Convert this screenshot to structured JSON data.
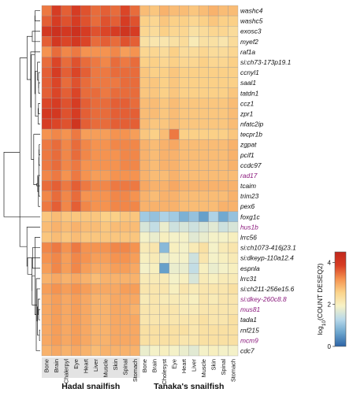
{
  "chart_data": {
    "type": "heatmap",
    "title": "",
    "genes": [
      {
        "label": "washc4",
        "highlight": false
      },
      {
        "label": "washc5",
        "highlight": false
      },
      {
        "label": "exosc3",
        "highlight": false
      },
      {
        "label": "myef2",
        "highlight": false
      },
      {
        "label": "raf1a",
        "highlight": false
      },
      {
        "label": "si:ch73-173p19.1",
        "highlight": false
      },
      {
        "label": "ccnyl1",
        "highlight": false
      },
      {
        "label": "saal1",
        "highlight": false
      },
      {
        "label": "tatdn1",
        "highlight": false
      },
      {
        "label": "ccz1",
        "highlight": false
      },
      {
        "label": "zpr1",
        "highlight": false
      },
      {
        "label": "nfatc2ip",
        "highlight": false
      },
      {
        "label": "tecpr1b",
        "highlight": false
      },
      {
        "label": "zgpat",
        "highlight": false
      },
      {
        "label": "pcif1",
        "highlight": false
      },
      {
        "label": "ccdc97",
        "highlight": false
      },
      {
        "label": "rad17",
        "highlight": true
      },
      {
        "label": "tcaim",
        "highlight": false
      },
      {
        "label": "trim23",
        "highlight": false
      },
      {
        "label": "pex6",
        "highlight": false
      },
      {
        "label": "foxg1c",
        "highlight": false
      },
      {
        "label": "hus1b",
        "highlight": true
      },
      {
        "label": "lrrc56",
        "highlight": false
      },
      {
        "label": "si:ch1073-416j23.1",
        "highlight": false
      },
      {
        "label": "si:dkeyp-110a12.4",
        "highlight": false
      },
      {
        "label": "espnla",
        "highlight": false
      },
      {
        "label": "lrrc31",
        "highlight": false
      },
      {
        "label": "si:ch211-256e15.6",
        "highlight": false
      },
      {
        "label": "si:dkey-260c8.8",
        "highlight": true
      },
      {
        "label": "mus81",
        "highlight": true
      },
      {
        "label": "tada1",
        "highlight": false
      },
      {
        "label": "rnf215",
        "highlight": false
      },
      {
        "label": "mcm9",
        "highlight": true
      },
      {
        "label": "cdc7",
        "highlight": false
      }
    ],
    "tissues": [
      "Bone",
      "Brain",
      "Chalerpyl",
      "Eye",
      "Heart",
      "Liver",
      "Muscle",
      "Skin",
      "Spinal",
      "Stomach",
      "Bone",
      "Brain",
      "Cholesyst",
      "Eye",
      "Heart",
      "Liver",
      "Muscle",
      "Skin",
      "Spinal",
      "Stomach"
    ],
    "groups": [
      {
        "name": "Hadal snailfish",
        "columns": 10
      },
      {
        "name": "Tanaka's snailfish",
        "columns": 10
      }
    ],
    "values": [
      [
        3.4,
        3.9,
        3.6,
        3.9,
        3.7,
        3.5,
        3.6,
        3.5,
        3.8,
        3.5,
        2.8,
        2.7,
        2.9,
        2.8,
        2.8,
        2.7,
        2.8,
        2.9,
        2.8,
        2.8
      ],
      [
        3.6,
        3.9,
        3.7,
        3.9,
        3.7,
        3.5,
        3.7,
        3.6,
        3.9,
        3.7,
        2.6,
        2.5,
        2.7,
        2.6,
        2.6,
        2.5,
        2.6,
        2.7,
        2.6,
        2.6
      ],
      [
        4.0,
        4.2,
        4.0,
        4.2,
        3.9,
        3.7,
        3.8,
        3.9,
        4.1,
        3.9,
        2.5,
        2.4,
        2.6,
        2.5,
        2.5,
        2.3,
        2.4,
        2.5,
        2.5,
        2.4
      ],
      [
        3.6,
        4.0,
        3.8,
        4.0,
        3.8,
        3.5,
        3.6,
        3.5,
        3.7,
        3.6,
        2.3,
        2.2,
        2.2,
        2.3,
        2.4,
        2.1,
        2.3,
        2.3,
        2.2,
        2.4
      ],
      [
        3.2,
        3.5,
        3.3,
        3.4,
        3.2,
        3.2,
        3.2,
        3.3,
        3.1,
        3.2,
        2.5,
        2.5,
        2.4,
        2.6,
        2.4,
        2.4,
        2.5,
        2.4,
        2.4,
        2.5
      ],
      [
        3.5,
        3.8,
        3.5,
        3.7,
        3.5,
        3.4,
        3.3,
        3.5,
        3.4,
        3.5,
        2.6,
        2.6,
        2.5,
        2.6,
        2.5,
        2.5,
        2.6,
        2.5,
        2.5,
        2.6
      ],
      [
        3.6,
        3.9,
        3.6,
        3.8,
        3.6,
        3.4,
        3.4,
        3.5,
        3.5,
        3.5,
        2.7,
        2.6,
        2.6,
        2.7,
        2.6,
        2.6,
        2.6,
        2.6,
        2.6,
        2.6
      ],
      [
        3.6,
        3.8,
        3.5,
        3.7,
        3.5,
        3.4,
        3.4,
        3.4,
        3.5,
        3.5,
        2.7,
        2.7,
        2.6,
        2.7,
        2.6,
        2.6,
        2.6,
        2.6,
        2.6,
        2.6
      ],
      [
        3.6,
        3.8,
        3.6,
        3.8,
        3.5,
        3.5,
        3.4,
        3.5,
        3.5,
        3.5,
        2.7,
        2.7,
        2.6,
        2.7,
        2.6,
        2.6,
        2.6,
        2.6,
        2.6,
        2.7
      ],
      [
        3.8,
        3.9,
        3.7,
        3.9,
        3.6,
        3.5,
        3.5,
        3.6,
        3.6,
        3.5,
        2.8,
        2.8,
        2.7,
        2.8,
        2.7,
        2.7,
        2.7,
        2.7,
        2.7,
        2.8
      ],
      [
        4.0,
        4.0,
        3.7,
        3.9,
        3.6,
        3.5,
        3.5,
        3.6,
        3.6,
        3.6,
        2.8,
        2.8,
        2.7,
        2.8,
        2.7,
        2.7,
        2.7,
        2.7,
        2.7,
        2.8
      ],
      [
        3.9,
        3.8,
        3.7,
        4.1,
        3.6,
        3.5,
        3.5,
        3.6,
        3.6,
        3.6,
        2.8,
        2.7,
        2.7,
        2.8,
        2.7,
        2.7,
        2.7,
        2.7,
        2.7,
        2.8
      ],
      [
        3.2,
        3.3,
        3.2,
        3.4,
        3.1,
        3.1,
        3.1,
        3.2,
        3.2,
        3.1,
        2.7,
        2.6,
        2.8,
        3.4,
        2.6,
        2.6,
        2.6,
        2.6,
        2.6,
        2.7
      ],
      [
        3.4,
        3.5,
        3.3,
        3.5,
        3.3,
        3.2,
        3.2,
        3.3,
        3.3,
        3.3,
        2.9,
        2.8,
        2.9,
        3.0,
        2.8,
        2.8,
        2.8,
        2.8,
        2.8,
        2.9
      ],
      [
        3.4,
        3.5,
        3.3,
        3.5,
        3.3,
        3.2,
        3.2,
        3.2,
        3.3,
        3.3,
        2.9,
        2.8,
        2.9,
        2.9,
        2.8,
        2.8,
        2.8,
        2.8,
        2.8,
        2.9
      ],
      [
        3.4,
        3.5,
        3.3,
        3.4,
        3.2,
        3.2,
        3.2,
        3.2,
        3.3,
        3.3,
        2.9,
        2.8,
        2.9,
        2.9,
        2.8,
        2.8,
        2.8,
        2.8,
        2.8,
        2.9
      ],
      [
        3.3,
        3.4,
        3.2,
        3.4,
        3.2,
        3.1,
        3.1,
        3.2,
        3.2,
        3.2,
        2.9,
        2.8,
        2.8,
        2.9,
        2.8,
        2.8,
        2.8,
        2.8,
        2.8,
        2.8
      ],
      [
        3.5,
        3.6,
        3.4,
        3.6,
        3.4,
        3.3,
        3.3,
        3.4,
        3.4,
        3.4,
        3.0,
        2.9,
        2.9,
        3.0,
        2.9,
        2.9,
        2.9,
        2.9,
        2.9,
        2.9
      ],
      [
        3.3,
        3.5,
        3.3,
        3.5,
        3.2,
        3.2,
        3.2,
        3.3,
        3.3,
        3.2,
        2.9,
        2.8,
        2.9,
        2.9,
        2.8,
        2.8,
        2.8,
        2.8,
        2.8,
        2.9
      ],
      [
        3.4,
        3.6,
        3.3,
        3.6,
        3.3,
        3.2,
        3.2,
        3.3,
        3.3,
        3.3,
        2.9,
        2.9,
        2.9,
        2.9,
        2.8,
        2.8,
        2.8,
        2.8,
        2.9,
        2.9
      ],
      [
        2.7,
        2.8,
        2.7,
        2.7,
        2.7,
        2.7,
        2.6,
        2.6,
        2.7,
        2.7,
        1.1,
        1.0,
        1.2,
        1.1,
        0.8,
        1.0,
        0.6,
        1.2,
        0.7,
        1.0
      ],
      [
        2.8,
        2.9,
        2.8,
        2.9,
        2.8,
        2.8,
        2.7,
        2.8,
        2.8,
        2.8,
        1.6,
        1.4,
        1.8,
        1.5,
        1.6,
        1.5,
        1.6,
        1.7,
        1.5,
        1.6
      ],
      [
        2.7,
        2.8,
        2.7,
        2.8,
        2.7,
        2.7,
        2.7,
        2.7,
        2.7,
        2.7,
        1.9,
        1.8,
        2.0,
        1.9,
        1.9,
        1.7,
        1.8,
        1.9,
        1.9,
        2.0
      ],
      [
        3.3,
        3.4,
        3.2,
        3.4,
        3.2,
        3.2,
        3.2,
        3.3,
        3.3,
        3.2,
        2.1,
        2.2,
        0.9,
        2.0,
        1.9,
        2.1,
        2.3,
        1.9,
        2.1,
        2.2
      ],
      [
        3.2,
        3.3,
        3.1,
        3.3,
        3.2,
        3.1,
        3.1,
        3.2,
        3.2,
        3.1,
        2.0,
        2.1,
        1.8,
        1.9,
        1.9,
        1.5,
        2.2,
        1.9,
        2.0,
        2.1
      ],
      [
        3.1,
        3.3,
        3.1,
        3.3,
        3.1,
        3.0,
        3.0,
        3.1,
        3.1,
        3.0,
        1.9,
        2.0,
        0.6,
        1.8,
        1.8,
        1.4,
        2.0,
        1.8,
        1.9,
        2.0
      ],
      [
        2.9,
        3.0,
        2.9,
        3.0,
        2.9,
        2.8,
        2.9,
        2.9,
        2.9,
        2.9,
        2.1,
        2.1,
        2.1,
        1.9,
        2.0,
        1.6,
        2.1,
        2.0,
        2.1,
        2.1
      ],
      [
        3.1,
        3.2,
        3.1,
        3.2,
        3.1,
        3.0,
        3.0,
        3.0,
        3.1,
        3.1,
        2.2,
        2.2,
        2.2,
        2.0,
        2.2,
        2.1,
        2.2,
        2.2,
        2.2,
        2.3
      ],
      [
        3.0,
        3.1,
        3.0,
        3.1,
        3.0,
        2.9,
        2.9,
        3.0,
        3.0,
        3.0,
        2.1,
        2.2,
        2.1,
        2.1,
        2.1,
        2.0,
        2.2,
        2.1,
        2.2,
        2.2
      ],
      [
        3.0,
        3.1,
        3.0,
        3.1,
        3.0,
        2.9,
        2.9,
        3.0,
        3.0,
        2.9,
        2.2,
        2.2,
        2.2,
        2.2,
        2.1,
        2.1,
        2.2,
        2.2,
        2.2,
        2.2
      ],
      [
        3.0,
        3.1,
        3.0,
        3.1,
        3.0,
        2.9,
        2.9,
        3.0,
        3.0,
        3.0,
        2.2,
        2.2,
        2.2,
        2.2,
        2.2,
        2.2,
        2.3,
        2.2,
        2.2,
        2.3
      ],
      [
        3.0,
        3.1,
        3.0,
        3.1,
        3.0,
        2.9,
        2.9,
        3.0,
        3.0,
        3.0,
        2.3,
        2.3,
        2.3,
        2.3,
        2.3,
        2.2,
        2.3,
        2.3,
        2.3,
        2.3
      ],
      [
        3.0,
        3.1,
        3.0,
        3.1,
        3.0,
        2.9,
        2.9,
        3.0,
        3.0,
        3.0,
        2.3,
        2.3,
        2.3,
        2.3,
        2.2,
        2.2,
        2.3,
        2.3,
        2.3,
        2.3
      ],
      [
        2.9,
        3.0,
        2.9,
        3.0,
        2.9,
        2.8,
        2.9,
        2.9,
        2.9,
        2.9,
        1.8,
        1.9,
        2.0,
        1.9,
        1.8,
        1.7,
        1.9,
        2.0,
        1.9,
        1.9
      ]
    ],
    "colorbar": {
      "label_prefix": "log",
      "label_sub": "10",
      "label_suffix": "(COUNT DESEQ2)",
      "min": 0,
      "max": 4.5,
      "ticks": [
        0,
        2,
        4
      ],
      "colors": [
        "#2c63a5",
        "#6aa4cd",
        "#b8d9ea",
        "#f7f2c6",
        "#fbd38a",
        "#f5924f",
        "#d83d23",
        "#c1271c"
      ]
    },
    "dendrogram": "row"
  }
}
